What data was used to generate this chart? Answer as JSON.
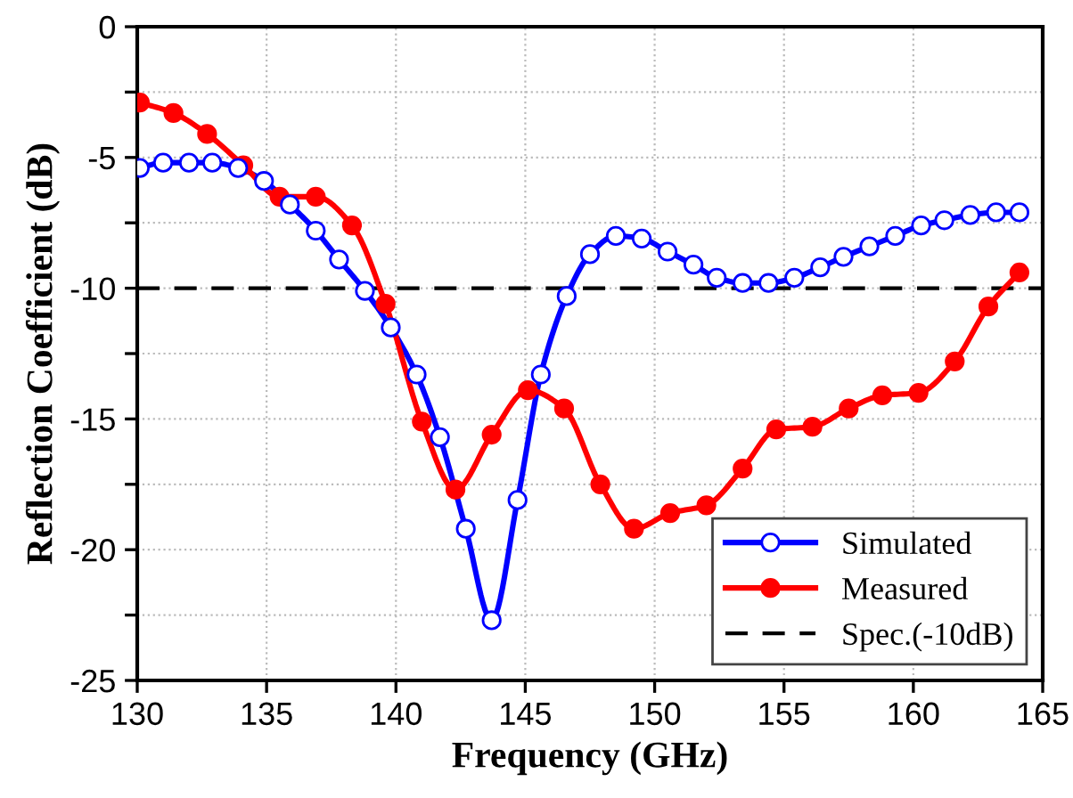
{
  "chart_data": {
    "type": "line",
    "xlabel": "Frequency (GHz)",
    "ylabel": "Reflection Coefficient (dB)",
    "xlim": [
      130,
      165
    ],
    "xticks": [
      130,
      135,
      140,
      145,
      150,
      155,
      160,
      165
    ],
    "ylim": [
      -25,
      0
    ],
    "yticks": [
      -25,
      {
        "value": -22.5,
        "label": null
      },
      -20,
      {
        "value": -17.5,
        "label": null
      },
      -15,
      {
        "value": -12.5,
        "label": null
      },
      -10,
      {
        "value": -7.5,
        "label": null
      },
      -5,
      {
        "value": -2.5,
        "label": null
      },
      0
    ],
    "grid": true,
    "legend": "bottom right",
    "line_style": "solid",
    "series": [
      {
        "name": "Simulated",
        "color": "#0000ff",
        "marker": "circle",
        "x": [
          130.1,
          131.0,
          132.0,
          132.9,
          133.9,
          134.9,
          135.9,
          136.9,
          137.8,
          138.8,
          139.8,
          140.8,
          141.7,
          142.7,
          143.7,
          144.7,
          145.6,
          146.6,
          147.5,
          148.5,
          149.5,
          150.5,
          151.5,
          152.4,
          153.4,
          154.4,
          155.4,
          156.4,
          157.3,
          158.3,
          159.3,
          160.3,
          161.2,
          162.2,
          163.2,
          164.1
        ],
        "values": [
          -5.4,
          -5.2,
          -5.2,
          -5.2,
          -5.4,
          -5.9,
          -6.8,
          -7.8,
          -8.9,
          -10.1,
          -11.5,
          -13.3,
          -15.7,
          -19.2,
          -22.7,
          -18.1,
          -13.3,
          -10.3,
          -8.7,
          -8.0,
          -8.1,
          -8.6,
          -9.1,
          -9.6,
          -9.8,
          -9.8,
          -9.6,
          -9.2,
          -8.8,
          -8.4,
          -8.0,
          -7.6,
          -7.4,
          -7.2,
          -7.1,
          -7.1
        ]
      },
      {
        "name": "Measured",
        "color": "#ff0000",
        "marker": "circle_filled",
        "x": [
          130.1,
          131.4,
          132.7,
          134.1,
          135.5,
          136.9,
          138.3,
          139.6,
          141.0,
          142.3,
          143.7,
          145.1,
          146.5,
          147.9,
          149.2,
          150.6,
          152.0,
          153.4,
          154.7,
          156.1,
          157.5,
          158.8,
          160.2,
          161.6,
          162.9,
          164.1
        ],
        "values": [
          -2.9,
          -3.3,
          -4.1,
          -5.3,
          -6.5,
          -6.5,
          -7.6,
          -10.6,
          -15.1,
          -17.7,
          -15.6,
          -13.9,
          -14.6,
          -17.5,
          -19.2,
          -18.6,
          -18.3,
          -16.9,
          -15.4,
          -15.3,
          -14.6,
          -14.1,
          -14.0,
          -12.8,
          -10.7,
          -9.4
        ]
      }
    ],
    "ref_lines": [
      {
        "axis": "y",
        "value": -10,
        "label": "Spec.(-10dB)",
        "color": "#000000",
        "line_style": "dashed"
      }
    ]
  }
}
